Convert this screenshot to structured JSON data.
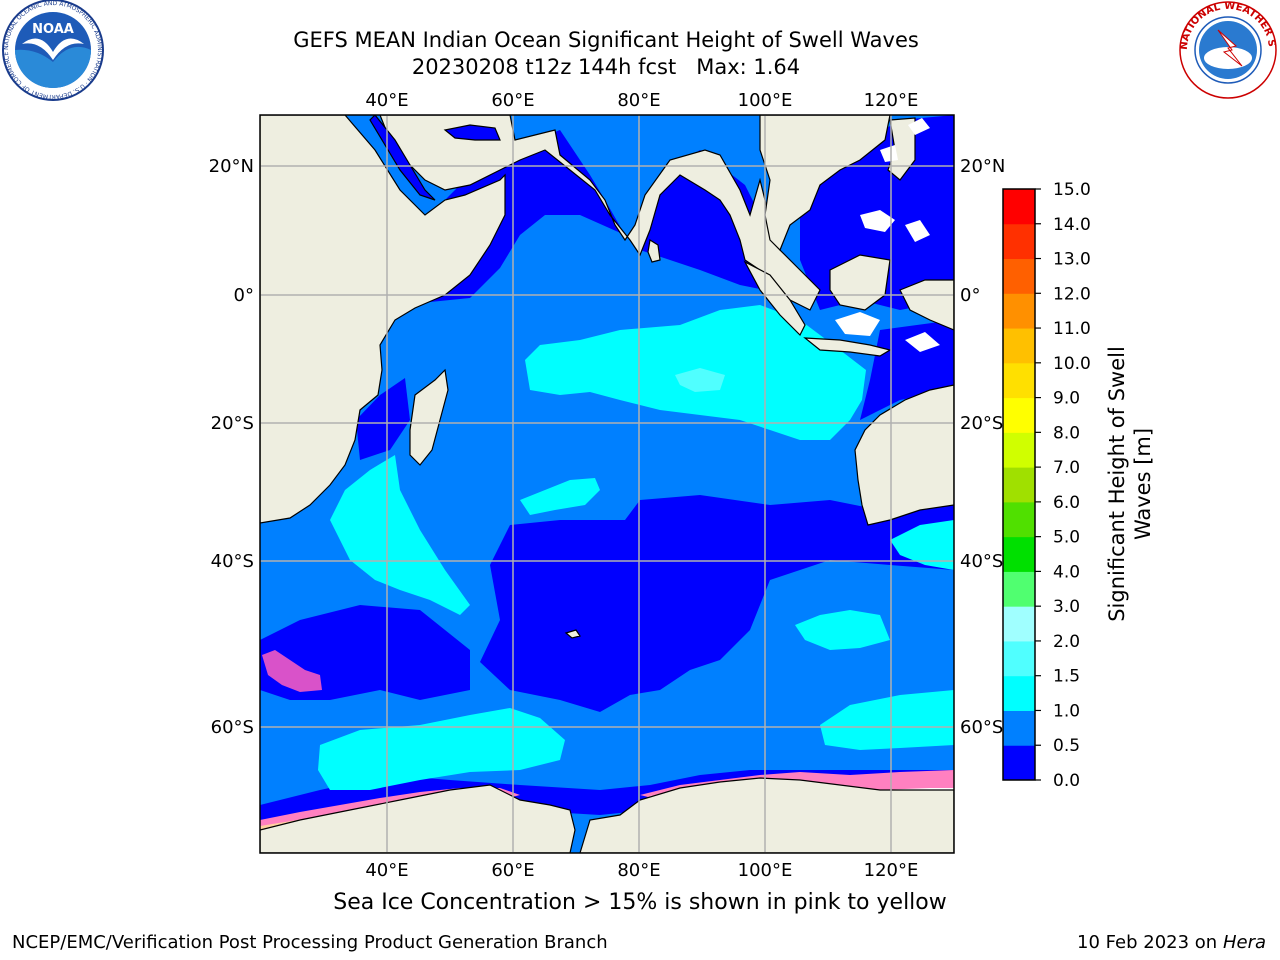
{
  "title_line1": "GEFS MEAN Indian Ocean Significant Height of Swell Waves",
  "title_line2_main": "20230208 t12z 144h fcst",
  "title_line2_max": "Max: 1.64",
  "caption": "Sea Ice Concentration > 15% is shown in pink to yellow",
  "footer_left": "NCEP/EMC/Verification Post Processing Product Generation Branch",
  "footer_right_date": "10 Feb 2023 on",
  "footer_right_host": "Hera",
  "logos": {
    "noaa_text": "NOAA",
    "noaa_ring_text": "NATIONAL OCEANIC AND ATMOSPHERIC ADMINISTRATION · U.S. DEPARTMENT OF COMMERCE",
    "nws_ring_text": "NATIONAL WEATHER SERVICE"
  },
  "map": {
    "lon_labels": [
      "40°E",
      "60°E",
      "80°E",
      "100°E",
      "120°E"
    ],
    "lat_labels": [
      "20°N",
      "0°",
      "20°S",
      "40°S",
      "60°S"
    ],
    "colors": {
      "land": "#EEEEE0",
      "grid": "#B0B0B0",
      "coast": "#000000"
    }
  },
  "colorbar": {
    "label_line1": "Significant Height of Swell",
    "label_line2": "Waves [m]",
    "ticks": [
      "0.0",
      "0.5",
      "1.0",
      "1.5",
      "2.0",
      "3.0",
      "4.0",
      "5.0",
      "6.0",
      "7.0",
      "8.0",
      "9.0",
      "10.0",
      "11.0",
      "12.0",
      "13.0",
      "14.0",
      "15.0"
    ],
    "colors": [
      "#0000FF",
      "#0080FF",
      "#00FFFF",
      "#50FFFF",
      "#A0FFFF",
      "#50FF70",
      "#00E000",
      "#50E000",
      "#A0E000",
      "#D0FF00",
      "#FFFF00",
      "#FFE000",
      "#FFC000",
      "#FF9000",
      "#FF6000",
      "#FF3000",
      "#FF0000"
    ]
  },
  "chart_data": {
    "type": "heatmap",
    "title": "GEFS MEAN Indian Ocean Significant Height of Swell Waves",
    "subtitle": "20230208 t12z 144h fcst   Max: 1.64",
    "variable": "Significant Height of Swell Waves [m]",
    "max_value": 1.64,
    "color_levels": [
      0.0,
      0.5,
      1.0,
      1.5,
      2.0,
      3.0,
      4.0,
      5.0,
      6.0,
      7.0,
      8.0,
      9.0,
      10.0,
      11.0,
      12.0,
      13.0,
      14.0,
      15.0
    ],
    "lon_range": [
      20,
      130
    ],
    "lat_range": [
      -75,
      28
    ],
    "lon_ticks": [
      40,
      60,
      80,
      100,
      120
    ],
    "lat_ticks": [
      20,
      0,
      -20,
      -40,
      -60
    ],
    "grid": true
  }
}
